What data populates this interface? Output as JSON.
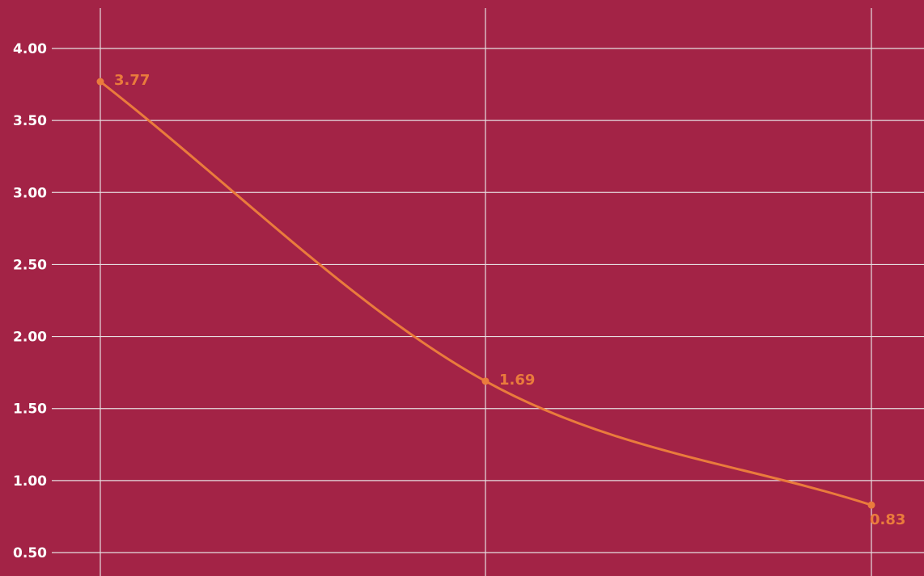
{
  "chart_data": {
    "type": "line",
    "title": "",
    "xlabel": "",
    "ylabel": "",
    "x": [
      0,
      1,
      2
    ],
    "series": [
      {
        "values": [
          3.77,
          1.69,
          0.83
        ],
        "data_labels": [
          "3.77",
          "1.69",
          "0.83"
        ]
      }
    ],
    "ylim": [
      0.5,
      4.0
    ],
    "yticks": [
      4.0,
      3.5,
      3.0,
      2.5,
      2.0,
      1.5,
      1.0,
      0.5
    ],
    "ytick_labels": [
      "4.00",
      "3.50",
      "3.00",
      "2.50",
      "2.00",
      "1.50",
      "1.00",
      "0.50"
    ],
    "grid": true,
    "legend": "none",
    "smooth": true
  },
  "colors": {
    "background": "#a32346",
    "grid": "#e6dde0",
    "series": "#ea7b3c",
    "tick_text": "#ffffff"
  }
}
